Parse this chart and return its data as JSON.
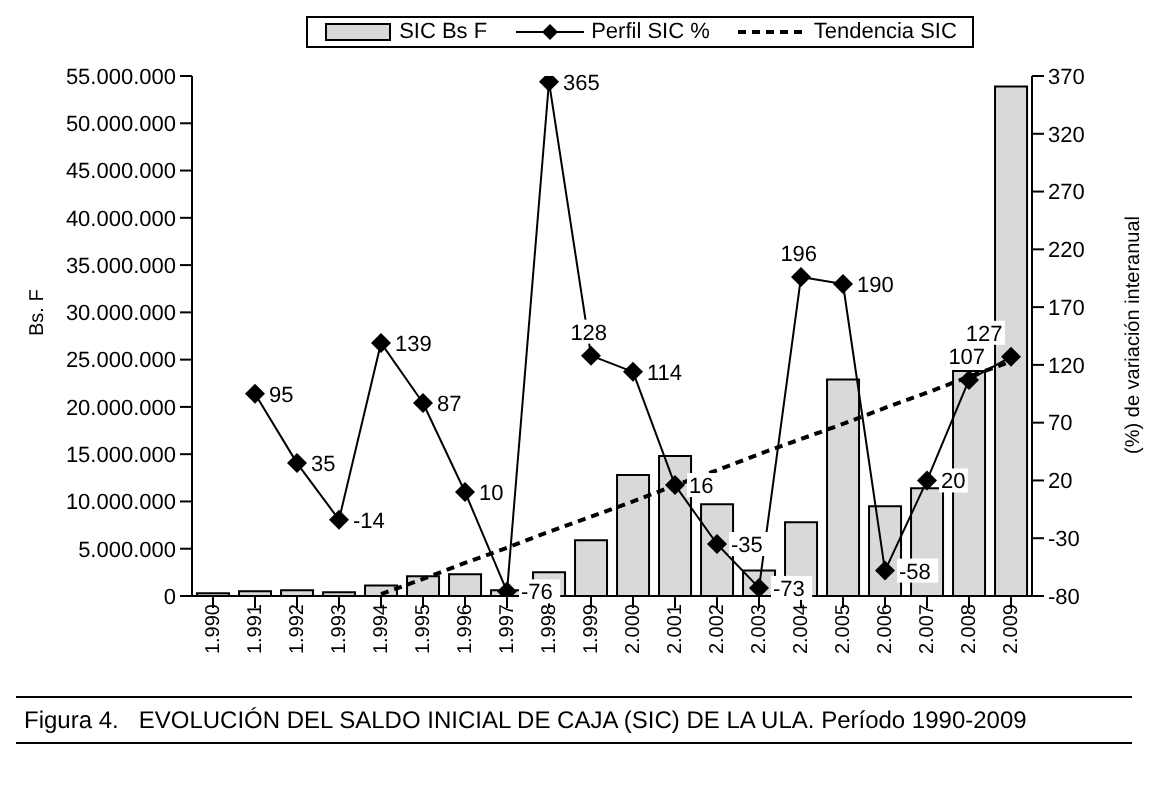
{
  "chart_data": {
    "type": "bar",
    "annotations": [
      "Figura 4.   EVOLUCIÓN DEL SALDO INICIAL DE CAJA (SIC) DE LA ULA. Período 1990-2009"
    ],
    "ylabel": "Bs. F",
    "y2label": "(%) de variación interanual",
    "categories": [
      "1.990",
      "1.991",
      "1.992",
      "1.993",
      "1.994",
      "1.995",
      "1.996",
      "1.997",
      "1.998",
      "1.999",
      "2.000",
      "2.001",
      "2.002",
      "2.003",
      "2.004",
      "2.005",
      "2.006",
      "2.007",
      "2.008",
      "2.009"
    ],
    "series": [
      {
        "name": "SIC Bs F",
        "color": "#d9d9d9",
        "values": [
          300000,
          500000,
          600000,
          400000,
          1100000,
          2100000,
          2300000,
          600000,
          2500000,
          5900000,
          12800000,
          14800000,
          9700000,
          2700000,
          7800000,
          22900000,
          9500000,
          11400000,
          23800000,
          53900000
        ]
      },
      {
        "name": "Perfil SIC %",
        "type": "line",
        "axis": "y2",
        "color": "#000000",
        "marker": "diamond",
        "line_style": "solid",
        "values": [
          null,
          95,
          35,
          -14,
          139,
          87,
          10,
          -76,
          365,
          128,
          114,
          16,
          -35,
          -73,
          196,
          190,
          -58,
          20,
          107,
          127
        ],
        "value_labels": [
          null,
          "95",
          "35",
          "-14",
          "139",
          "87",
          "10",
          "-76",
          "365",
          "128",
          "114",
          "16",
          "-35",
          "-73",
          "196",
          "190",
          "-58",
          "20",
          "107",
          "127"
        ]
      },
      {
        "name": "Tendencia SIC",
        "type": "line",
        "color": "#000000",
        "marker": "none",
        "line_style": "dashed",
        "values": [
          null,
          null,
          null,
          null,
          200000,
          1800000,
          3500000,
          5100000,
          6800000,
          8400000,
          10000000,
          11700000,
          13300000,
          15000000,
          16600000,
          18200000,
          19900000,
          21500000,
          23200000,
          24800000
        ]
      }
    ],
    "ylim": [
      0,
      55000000
    ],
    "yticks": [
      {
        "value": 0,
        "label": "0"
      },
      {
        "value": 5000000,
        "label": "5.000.000"
      },
      {
        "value": 10000000,
        "label": "10.000.000"
      },
      {
        "value": 15000000,
        "label": "15.000.000"
      },
      {
        "value": 20000000,
        "label": "20.000.000"
      },
      {
        "value": 25000000,
        "label": "25.000.000"
      },
      {
        "value": 30000000,
        "label": "30.000.000"
      },
      {
        "value": 35000000,
        "label": "35.000.000"
      },
      {
        "value": 40000000,
        "label": "40.000.000"
      },
      {
        "value": 45000000,
        "label": "45.000.000"
      },
      {
        "value": 50000000,
        "label": "50.000.000"
      },
      {
        "value": 55000000,
        "label": "55.000.000"
      }
    ],
    "y2lim": [
      -80,
      370
    ],
    "y2ticks": [
      -80,
      -30,
      20,
      70,
      120,
      170,
      220,
      270,
      320,
      370
    ],
    "grid": false,
    "legend": "top"
  }
}
